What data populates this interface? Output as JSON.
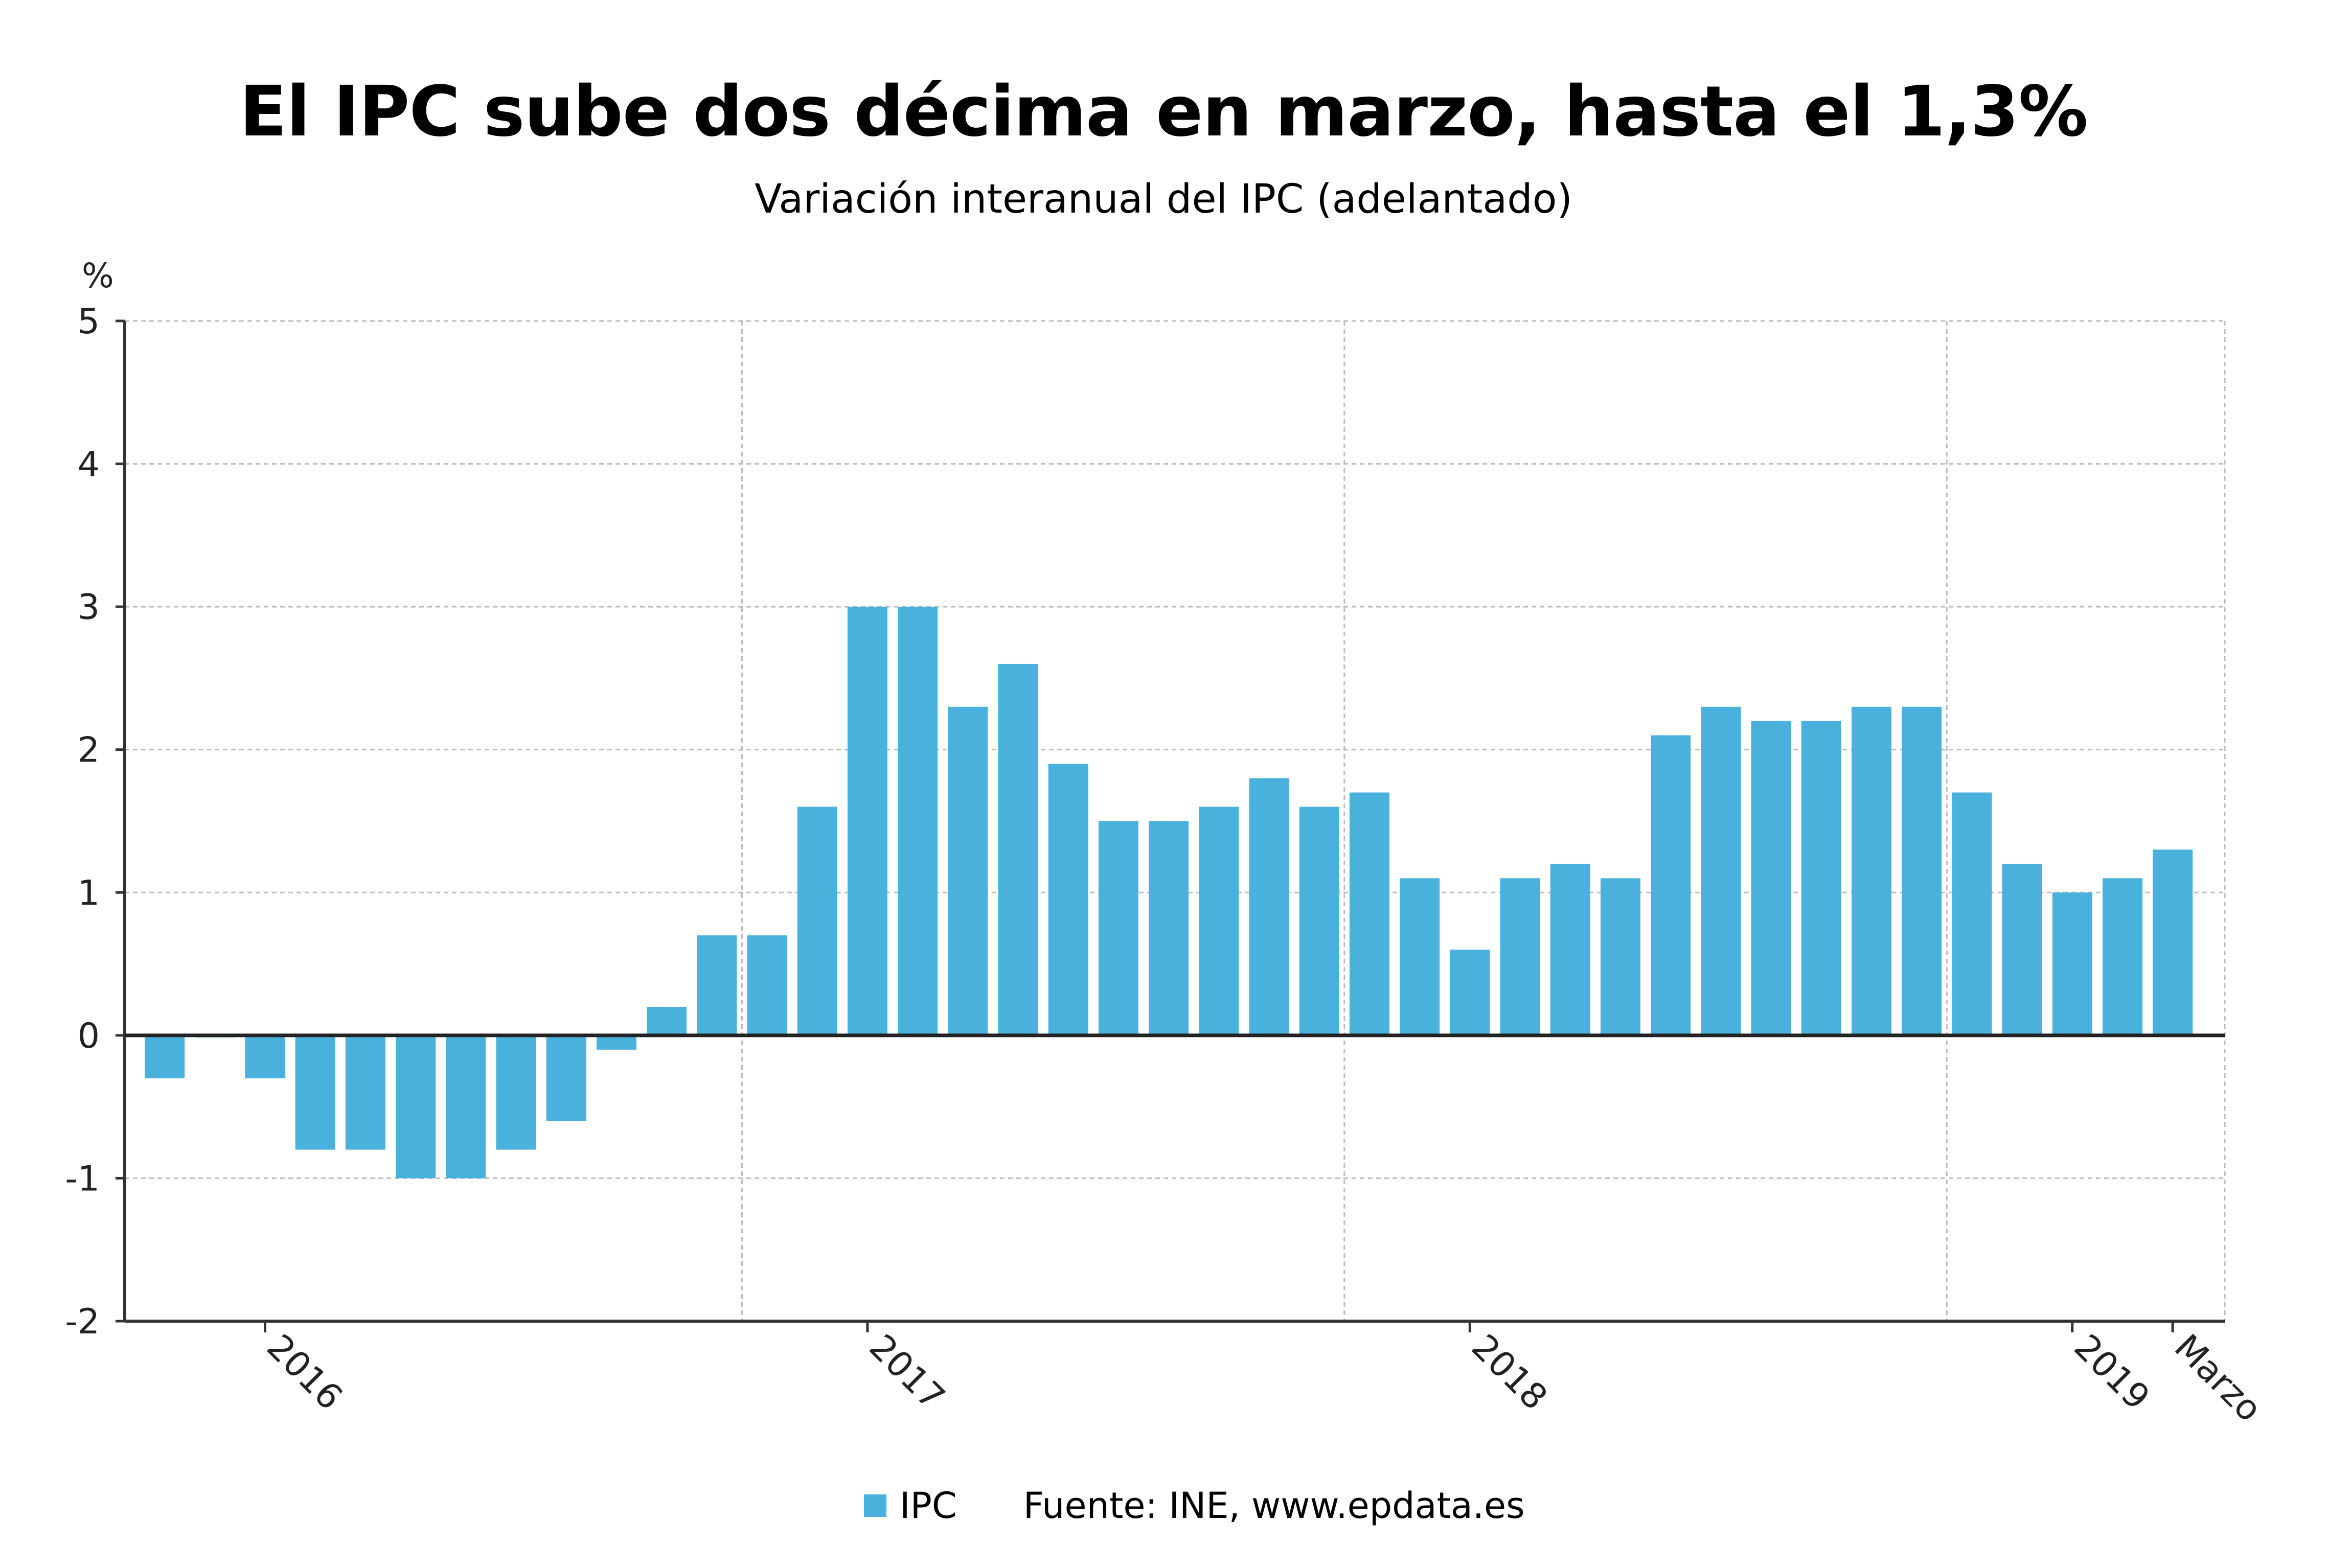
{
  "header": {
    "title": "El IPC sube dos décima en marzo, hasta el 1,3%",
    "subtitle": "Variación interanual del IPC (adelantado)"
  },
  "footer": {
    "legend_label": "IPC",
    "source": "Fuente: INE, www.epdata.es"
  },
  "colors": {
    "bar": "#4ab0dc",
    "grid": "#bbbbbb",
    "axis": "#333333"
  },
  "chart_data": {
    "type": "bar",
    "title": "El IPC sube dos décima en marzo, hasta el 1,3%",
    "subtitle": "Variación interanual del IPC (adelantado)",
    "ylabel": "%",
    "ylim": [
      -2,
      5
    ],
    "yticks": [
      5,
      4,
      3,
      2,
      1,
      0,
      -1,
      -2
    ],
    "grid": true,
    "legend": "bottom",
    "x_labels": [
      {
        "label": "2016",
        "index": 2.5
      },
      {
        "label": "2017",
        "index": 14.5
      },
      {
        "label": "2018",
        "index": 26.5
      },
      {
        "label": "2019",
        "index": 38.5
      },
      {
        "label": "Marzo",
        "index": 40.5
      }
    ],
    "series": [
      {
        "name": "IPC",
        "values": [
          -0.3,
          0.0,
          -0.3,
          -0.8,
          -0.8,
          -1.0,
          -1.0,
          -0.8,
          -0.6,
          -0.1,
          0.2,
          0.7,
          0.7,
          1.6,
          3.0,
          3.0,
          2.3,
          2.6,
          1.9,
          1.5,
          1.5,
          1.6,
          1.8,
          1.6,
          1.7,
          1.1,
          0.6,
          1.1,
          1.2,
          1.1,
          2.1,
          2.3,
          2.2,
          2.2,
          2.3,
          2.3,
          1.7,
          1.2,
          1.0,
          1.1,
          1.3
        ]
      }
    ]
  }
}
